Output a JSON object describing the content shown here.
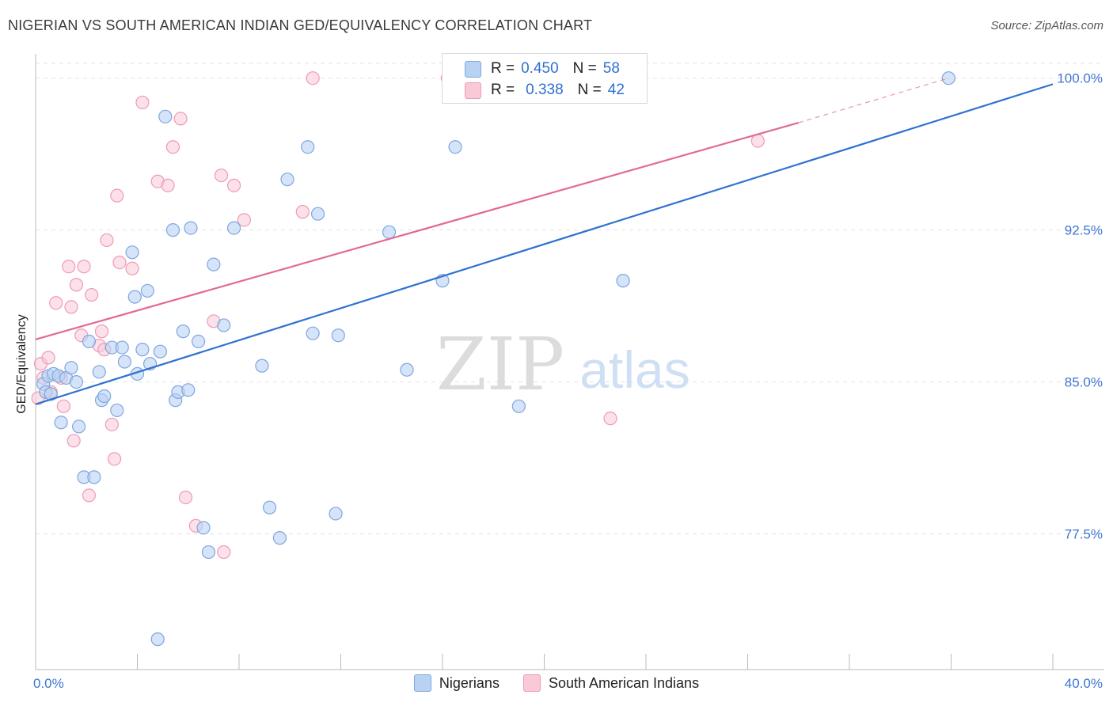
{
  "header": {
    "title": "NIGERIAN VS SOUTH AMERICAN INDIAN GED/EQUIVALENCY CORRELATION CHART",
    "source": "Source: ZipAtlas.com"
  },
  "legend": {
    "series1": {
      "r_label": "R =",
      "r_value": "0.450",
      "n_label": "N =",
      "n_value": "58"
    },
    "series2": {
      "r_label": "R =",
      "r_value": "0.338",
      "n_label": "N =",
      "n_value": "42"
    }
  },
  "watermark": {
    "zip": "ZIP",
    "atlas": "atlas"
  },
  "colors": {
    "blue_fill": "#b9d2f4",
    "blue_stroke": "#7ea7e0",
    "blue_line": "#2f72d0",
    "pink_fill": "#f9c9d8",
    "pink_stroke": "#ee9ab4",
    "pink_line": "#e26a92",
    "tick_text": "#3d76d0"
  },
  "chart_data": {
    "type": "scatter",
    "title": "NIGERIAN VS SOUTH AMERICAN INDIAN GED/EQUIVALENCY CORRELATION CHART",
    "xlabel": "",
    "ylabel": "GED/Equivalency",
    "xlim": [
      0,
      40
    ],
    "ylim": [
      70.8,
      101.2
    ],
    "x_ticks": [
      {
        "value": 0,
        "label": "0.0%"
      },
      {
        "value": 40,
        "label": "40.0%"
      }
    ],
    "y_ticks": [
      {
        "value": 77.5,
        "label": "77.5%"
      },
      {
        "value": 85.0,
        "label": "85.0%"
      },
      {
        "value": 92.5,
        "label": "92.5%"
      },
      {
        "value": 100.0,
        "label": "100.0%"
      }
    ],
    "grid": true,
    "series": [
      {
        "name": "Nigerians",
        "color": "#b9d2f4",
        "r": 0.45,
        "n": 58,
        "trend": {
          "x0": 0,
          "y0": 83.9,
          "x1": 40,
          "y1": 99.7
        },
        "points": [
          [
            0.3,
            84.9
          ],
          [
            0.4,
            84.5
          ],
          [
            0.5,
            85.3
          ],
          [
            0.6,
            84.4
          ],
          [
            0.7,
            85.4
          ],
          [
            0.9,
            85.3
          ],
          [
            1.0,
            83.0
          ],
          [
            1.2,
            85.2
          ],
          [
            1.4,
            85.7
          ],
          [
            1.6,
            85.0
          ],
          [
            1.7,
            82.8
          ],
          [
            1.9,
            80.3
          ],
          [
            2.1,
            87.0
          ],
          [
            2.3,
            80.3
          ],
          [
            2.5,
            85.5
          ],
          [
            2.6,
            84.1
          ],
          [
            2.7,
            84.3
          ],
          [
            3.0,
            86.7
          ],
          [
            3.2,
            83.6
          ],
          [
            3.4,
            86.7
          ],
          [
            3.5,
            86.0
          ],
          [
            3.8,
            91.4
          ],
          [
            3.9,
            89.2
          ],
          [
            4.0,
            85.4
          ],
          [
            4.2,
            86.6
          ],
          [
            4.4,
            89.5
          ],
          [
            4.5,
            85.9
          ],
          [
            4.8,
            72.3
          ],
          [
            4.9,
            86.5
          ],
          [
            5.1,
            98.1
          ],
          [
            5.4,
            92.5
          ],
          [
            5.5,
            84.1
          ],
          [
            5.6,
            84.5
          ],
          [
            5.8,
            87.5
          ],
          [
            6.0,
            84.6
          ],
          [
            6.1,
            92.6
          ],
          [
            6.4,
            87.0
          ],
          [
            6.6,
            77.8
          ],
          [
            6.8,
            76.6
          ],
          [
            7.0,
            90.8
          ],
          [
            7.4,
            87.8
          ],
          [
            7.8,
            92.6
          ],
          [
            8.9,
            85.8
          ],
          [
            9.2,
            78.8
          ],
          [
            9.6,
            77.3
          ],
          [
            9.9,
            95.0
          ],
          [
            10.7,
            96.6
          ],
          [
            10.9,
            87.4
          ],
          [
            11.1,
            93.3
          ],
          [
            11.8,
            78.5
          ],
          [
            11.9,
            87.3
          ],
          [
            13.9,
            92.4
          ],
          [
            14.6,
            85.6
          ],
          [
            16.0,
            90.0
          ],
          [
            16.5,
            96.6
          ],
          [
            19.0,
            83.8
          ],
          [
            23.1,
            90.0
          ],
          [
            35.9,
            100.0
          ]
        ]
      },
      {
        "name": "South American Indians",
        "color": "#f9c9d8",
        "r": 0.338,
        "n": 42,
        "trend": {
          "x0": 0,
          "y0": 87.1,
          "x1": 30,
          "y1": 97.8,
          "dash_x1": 35.9,
          "dash_y1": 100.0
        },
        "points": [
          [
            0.1,
            84.2
          ],
          [
            0.2,
            85.9
          ],
          [
            0.3,
            85.2
          ],
          [
            0.5,
            86.2
          ],
          [
            0.6,
            84.5
          ],
          [
            0.8,
            88.9
          ],
          [
            1.0,
            85.2
          ],
          [
            1.1,
            83.8
          ],
          [
            1.3,
            90.7
          ],
          [
            1.4,
            88.7
          ],
          [
            1.5,
            82.1
          ],
          [
            1.6,
            89.8
          ],
          [
            1.8,
            87.3
          ],
          [
            1.9,
            90.7
          ],
          [
            2.1,
            79.4
          ],
          [
            2.2,
            89.3
          ],
          [
            2.5,
            86.8
          ],
          [
            2.6,
            87.5
          ],
          [
            2.7,
            86.6
          ],
          [
            2.8,
            92.0
          ],
          [
            3.0,
            82.9
          ],
          [
            3.1,
            81.2
          ],
          [
            3.2,
            94.2
          ],
          [
            3.3,
            90.9
          ],
          [
            3.8,
            90.6
          ],
          [
            4.2,
            98.8
          ],
          [
            4.8,
            94.9
          ],
          [
            5.2,
            94.7
          ],
          [
            5.4,
            96.6
          ],
          [
            5.7,
            98.0
          ],
          [
            5.9,
            79.3
          ],
          [
            6.3,
            77.9
          ],
          [
            7.0,
            88.0
          ],
          [
            7.3,
            95.2
          ],
          [
            7.4,
            76.6
          ],
          [
            7.8,
            94.7
          ],
          [
            8.2,
            93.0
          ],
          [
            10.5,
            93.4
          ],
          [
            10.9,
            100.0
          ],
          [
            16.2,
            100.0
          ],
          [
            22.6,
            83.2
          ],
          [
            28.4,
            96.9
          ]
        ]
      }
    ]
  }
}
